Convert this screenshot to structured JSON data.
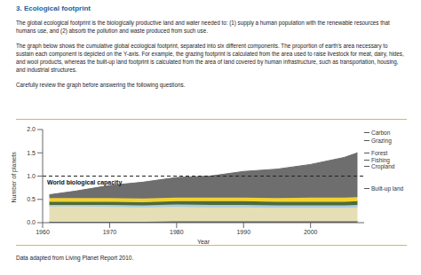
{
  "heading": "3. Ecological footprint",
  "paragraphs": [
    "The global ecological footprint is the biologically productive land and water needed to: (1) supply a human population with the renewable resources that humans use, and (2) absorb the pollution and waste produced from such use.",
    "The graph below shows the cumulative global ecological footprint, separated into six different components. The proportion of earth's area necessary to sustain each component is depicted on the Y-axis. For example, the grazing footprint is calculated from the area used to raise livestock for meat, dairy, hides, and wool products, whereas the built-up land footprint is calculated from the area of land covered by human infrastructure, such as transportation, housing, and industrial structures.",
    "Carefully review the graph before answering the following questions."
  ],
  "chart_data": {
    "type": "area",
    "stacked": true,
    "x_label": "Year",
    "y_label": "Number of planets",
    "x": [
      1961,
      1965,
      1970,
      1975,
      1980,
      1985,
      1990,
      1995,
      2000,
      2005,
      2007
    ],
    "xlim": [
      1960,
      2008
    ],
    "xticks": [
      1960,
      1970,
      1980,
      1990,
      2000
    ],
    "ylim": [
      0,
      2.0
    ],
    "yticks": [
      {
        "value": 0,
        "label": "0.0"
      },
      {
        "value": 0.5,
        "label": "0.5"
      },
      {
        "value": 1.0,
        "label": "1.0"
      },
      {
        "value": 1.5,
        "label": "1.5"
      },
      {
        "value": 2.0,
        "label": "2.0"
      }
    ],
    "reference_line": {
      "value": 1.0,
      "label": "World biological capacity",
      "line_style": "dashed"
    },
    "series": [
      {
        "name": "Built-up land",
        "color": "#555555",
        "values": [
          0.02,
          0.02,
          0.02,
          0.02,
          0.03,
          0.03,
          0.03,
          0.03,
          0.03,
          0.03,
          0.03
        ]
      },
      {
        "name": "Cropland",
        "color": "#e6dfb5",
        "values": [
          0.33,
          0.33,
          0.32,
          0.31,
          0.31,
          0.3,
          0.3,
          0.29,
          0.29,
          0.29,
          0.3
        ]
      },
      {
        "name": "Fishing",
        "color": "#a9cce3",
        "values": [
          0.03,
          0.03,
          0.04,
          0.04,
          0.05,
          0.05,
          0.05,
          0.05,
          0.05,
          0.05,
          0.05
        ]
      },
      {
        "name": "Forest",
        "color": "#4f6b3a",
        "values": [
          0.07,
          0.07,
          0.07,
          0.07,
          0.07,
          0.08,
          0.08,
          0.08,
          0.08,
          0.08,
          0.08
        ]
      },
      {
        "name": "Grazing",
        "color": "#f2d230",
        "values": [
          0.08,
          0.08,
          0.08,
          0.08,
          0.08,
          0.08,
          0.08,
          0.08,
          0.09,
          0.09,
          0.09
        ]
      },
      {
        "name": "Carbon",
        "color": "#6e6e6e",
        "values": [
          0.07,
          0.15,
          0.27,
          0.35,
          0.43,
          0.46,
          0.56,
          0.62,
          0.71,
          0.86,
          0.95
        ]
      }
    ]
  },
  "source": "Data adapted from Living Planet Report 2010."
}
